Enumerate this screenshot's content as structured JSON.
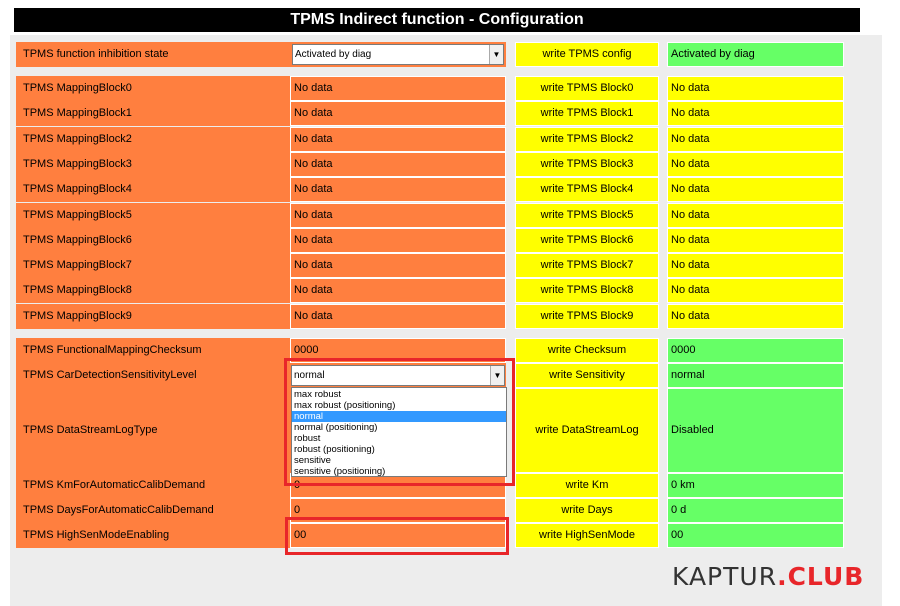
{
  "title": "TPMS Indirect function - Configuration",
  "inhibition": {
    "label": "TPMS function inhibition state",
    "value": "Activated by diag",
    "button": "write TPMS config",
    "result": "Activated by diag"
  },
  "mapping_blocks": [
    {
      "label": "TPMS MappingBlock0",
      "value": "No data",
      "button": "write TPMS Block0",
      "result": "No data"
    },
    {
      "label": "TPMS MappingBlock1",
      "value": "No data",
      "button": "write TPMS Block1",
      "result": "No data"
    },
    {
      "label": "TPMS MappingBlock2",
      "value": "No data",
      "button": "write TPMS Block2",
      "result": "No data"
    },
    {
      "label": "TPMS MappingBlock3",
      "value": "No data",
      "button": "write TPMS Block3",
      "result": "No data"
    },
    {
      "label": "TPMS MappingBlock4",
      "value": "No data",
      "button": "write TPMS Block4",
      "result": "No data"
    },
    {
      "label": "TPMS MappingBlock5",
      "value": "No data",
      "button": "write TPMS Block5",
      "result": "No data"
    },
    {
      "label": "TPMS MappingBlock6",
      "value": "No data",
      "button": "write TPMS Block6",
      "result": "No data"
    },
    {
      "label": "TPMS MappingBlock7",
      "value": "No data",
      "button": "write TPMS Block7",
      "result": "No data"
    },
    {
      "label": "TPMS MappingBlock8",
      "value": "No data",
      "button": "write TPMS Block8",
      "result": "No data"
    },
    {
      "label": "TPMS MappingBlock9",
      "value": "No data",
      "button": "write TPMS Block9",
      "result": "No data"
    }
  ],
  "checksum": {
    "label": "TPMS FunctionalMappingChecksum",
    "value": "0000",
    "button": "write Checksum",
    "result": "0000"
  },
  "sensitivity": {
    "label": "TPMS CarDetectionSensitivityLevel",
    "value": "normal",
    "button": "write Sensitivity",
    "result": "normal",
    "options": [
      "max robust",
      "max robust (positioning)",
      "normal",
      "normal (positioning)",
      "robust",
      "robust (positioning)",
      "sensitive",
      "sensitive (positioning)"
    ],
    "selected_index": 2
  },
  "datastream": {
    "label": "TPMS DataStreamLogType",
    "button": "write DataStreamLog",
    "result": "Disabled"
  },
  "km": {
    "label": "TPMS KmForAutomaticCalibDemand",
    "value": "0",
    "button": "write Km",
    "result": "0 km"
  },
  "days": {
    "label": "TPMS DaysForAutomaticCalibDemand",
    "value": "0",
    "button": "write Days",
    "result": "0 d"
  },
  "highsen": {
    "label": "TPMS HighSenModeEnabling",
    "value": "00",
    "button": "write HighSenMode",
    "result": "00"
  },
  "watermark": {
    "part1": "KAPTUR",
    "part2": ".CLUB"
  },
  "colors": {
    "label_bg": "#ff7f3f",
    "button_bg": "#ffff00",
    "green_result": "#66ff66",
    "highlight": "#e8262a",
    "selected_option": "#3399ff"
  },
  "icons": {
    "dropdown_arrow": "chevron-down-icon"
  }
}
